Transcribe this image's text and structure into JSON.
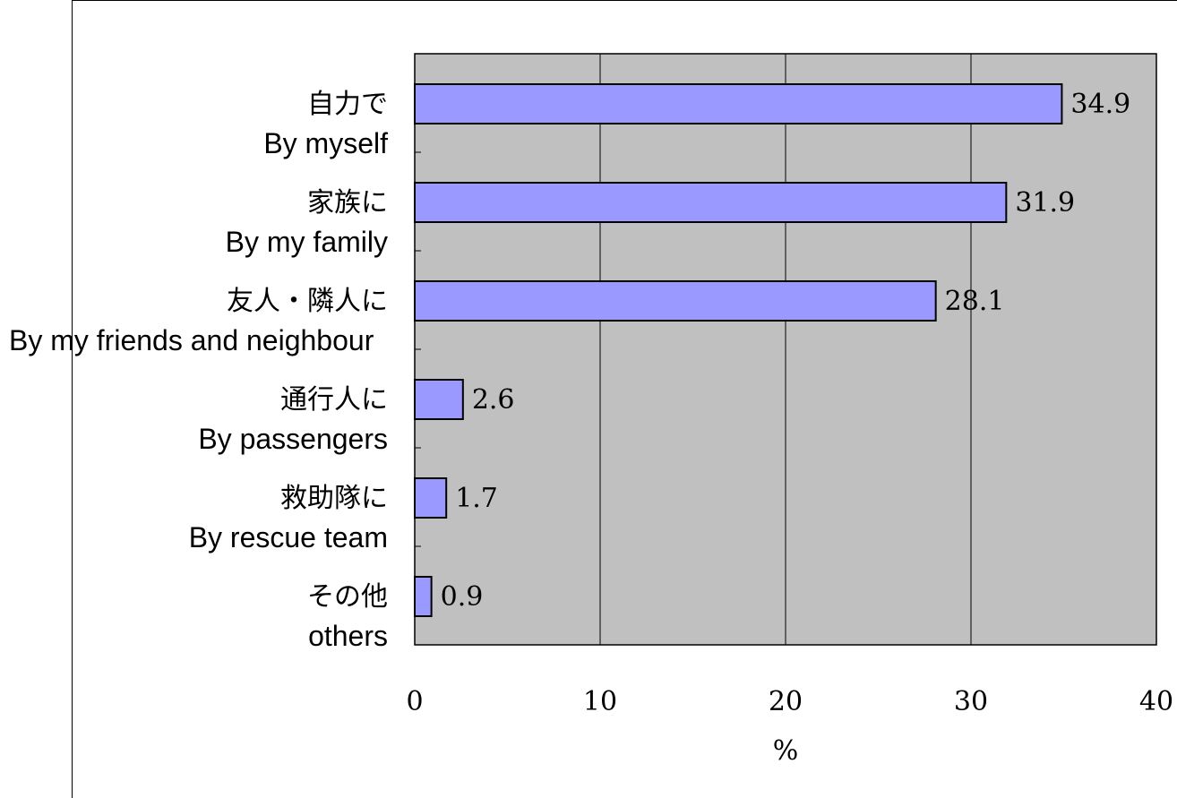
{
  "chart_data": {
    "type": "bar",
    "orientation": "horizontal",
    "categories": [
      {
        "jp": "自力で",
        "en": "By myself"
      },
      {
        "jp": "家族に",
        "en": "By my family"
      },
      {
        "jp": "友人・隣人に",
        "en": "By my friends and neighbour"
      },
      {
        "jp": "通行人に",
        "en": "By passengers"
      },
      {
        "jp": "救助隊に",
        "en": "By rescue team"
      },
      {
        "jp": "その他",
        "en": "others"
      }
    ],
    "values": [
      34.9,
      31.9,
      28.1,
      2.6,
      1.7,
      0.9
    ],
    "value_labels": [
      "34.9",
      "31.9",
      "28.1",
      "2.6",
      "1.7",
      "0.9"
    ],
    "xlim": [
      0,
      40
    ],
    "xticks": [
      "0",
      "10",
      "20",
      "30",
      "40"
    ],
    "xlabel": "%",
    "title": "",
    "grid": "vertical gridlines",
    "colors": {
      "bar_fill": "#9999ff",
      "plot_background": "#c0c0c0",
      "bar_stroke": "#000000"
    }
  }
}
